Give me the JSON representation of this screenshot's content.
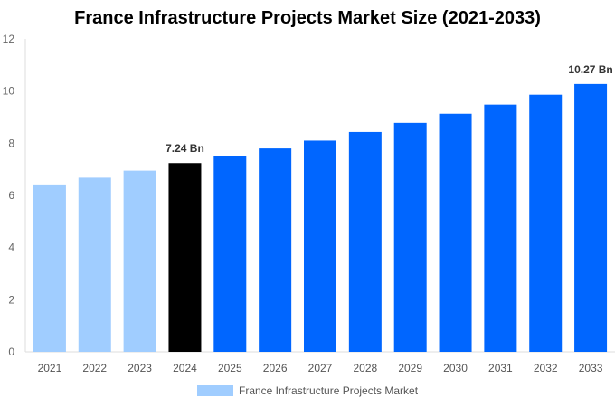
{
  "chart_data": {
    "type": "bar",
    "title": "France Infrastructure Projects Market Size (2021-2033)",
    "categories": [
      "2021",
      "2022",
      "2023",
      "2024",
      "2025",
      "2026",
      "2027",
      "2028",
      "2029",
      "2030",
      "2031",
      "2032",
      "2033"
    ],
    "series": [
      {
        "name": "France Infrastructure Projects Market",
        "values": [
          6.42,
          6.68,
          6.95,
          7.24,
          7.5,
          7.8,
          8.1,
          8.43,
          8.78,
          9.13,
          9.48,
          9.86,
          10.27
        ]
      }
    ],
    "bar_colors": [
      "#a0cdff",
      "#a0cdff",
      "#a0cdff",
      "#000000",
      "#0066ff",
      "#0066ff",
      "#0066ff",
      "#0066ff",
      "#0066ff",
      "#0066ff",
      "#0066ff",
      "#0066ff",
      "#0066ff"
    ],
    "data_labels": [
      {
        "category": "2024",
        "text": "7.24 Bn"
      },
      {
        "category": "2033",
        "text": "10.27 Bn"
      }
    ],
    "ylim": [
      0,
      12
    ],
    "yticks": [
      0,
      2,
      4,
      6,
      8,
      10,
      12
    ],
    "xlabel": "",
    "ylabel": "",
    "grid": false,
    "legend": {
      "position": "bottom",
      "label": "France Infrastructure Projects Market",
      "color": "#a0cdff"
    }
  }
}
